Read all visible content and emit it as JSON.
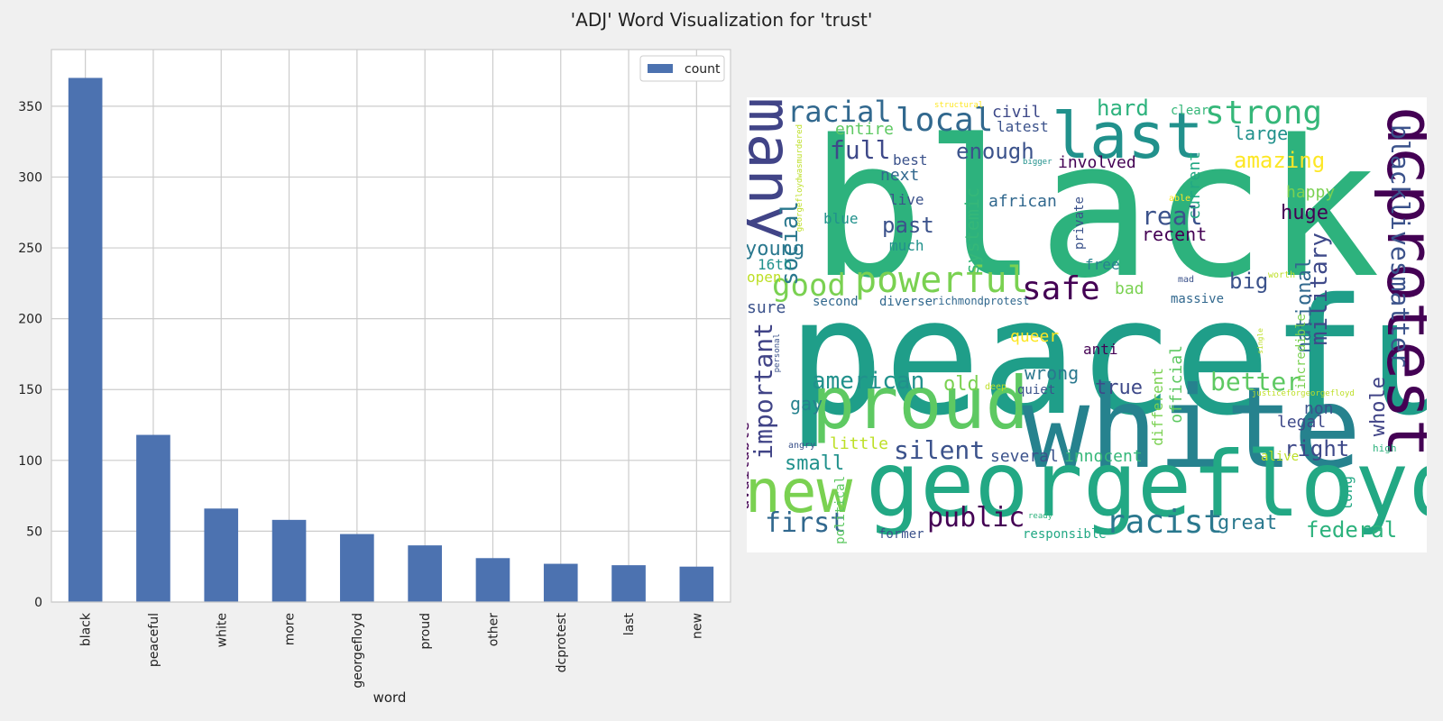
{
  "figure": {
    "title": "'ADJ' Word Visualization for 'trust'"
  },
  "chart_data": {
    "type": "bar",
    "categories": [
      "black",
      "peaceful",
      "white",
      "more",
      "georgefloyd",
      "proud",
      "other",
      "dcprotest",
      "last",
      "new"
    ],
    "series": [
      {
        "name": "count",
        "values": [
          370,
          118,
          66,
          58,
          48,
          40,
          31,
          27,
          26,
          25
        ]
      }
    ],
    "xlabel": "word",
    "ylabel": "",
    "ylim": [
      0,
      390
    ],
    "yticks": [
      0,
      50,
      100,
      150,
      200,
      250,
      300,
      350
    ],
    "grid": true,
    "legend_placement": "top-right",
    "bar_color": "#4c72b0"
  },
  "wordcloud": {
    "words": [
      {
        "text": "black",
        "c": "#2db27d"
      },
      {
        "text": "peaceful",
        "c": "#1f9e89"
      },
      {
        "text": "white",
        "c": "#26828e"
      },
      {
        "text": "georgefloyd",
        "c": "#22a884"
      },
      {
        "text": "proud",
        "c": "#5ec962"
      },
      {
        "text": "dcprotest",
        "c": "#440154"
      },
      {
        "text": "many",
        "c": "#414487"
      },
      {
        "text": "last",
        "c": "#21918c"
      },
      {
        "text": "new",
        "c": "#7ad151"
      },
      {
        "text": "powerful",
        "c": "#7ad151"
      },
      {
        "text": "blacklivesmatter",
        "c": "#3b528b"
      },
      {
        "text": "racist",
        "c": "#2a788e"
      },
      {
        "text": "strong",
        "c": "#35b779"
      },
      {
        "text": "local",
        "c": "#31688e"
      },
      {
        "text": "racial",
        "c": "#31688e"
      },
      {
        "text": "safe",
        "c": "#440154"
      },
      {
        "text": "public",
        "c": "#440154"
      },
      {
        "text": "good",
        "c": "#7ad151"
      },
      {
        "text": "military",
        "c": "#3e4989"
      },
      {
        "text": "important",
        "c": "#414487"
      },
      {
        "text": "social",
        "c": "#2a788e"
      },
      {
        "text": "american",
        "c": "#21918c"
      },
      {
        "text": "silent",
        "c": "#3b528b"
      },
      {
        "text": "first",
        "c": "#31688e"
      },
      {
        "text": "full",
        "c": "#3e4989"
      },
      {
        "text": "better",
        "c": "#5ec962"
      },
      {
        "text": "real",
        "c": "#3b528b"
      },
      {
        "text": "federal",
        "c": "#2db27d"
      },
      {
        "text": "national",
        "c": "#31688e"
      },
      {
        "text": "amazing",
        "c": "#fde725"
      },
      {
        "text": "whole",
        "c": "#414487"
      },
      {
        "text": "right",
        "c": "#3e4989"
      },
      {
        "text": "great",
        "c": "#2a788e"
      },
      {
        "text": "young",
        "c": "#2a788e"
      },
      {
        "text": "enough",
        "c": "#3b528b"
      },
      {
        "text": "hard",
        "c": "#2db27d"
      },
      {
        "text": "big",
        "c": "#3b528b"
      },
      {
        "text": "past",
        "c": "#3b528b"
      },
      {
        "text": "systemic",
        "c": "#35b779"
      },
      {
        "text": "huge",
        "c": "#440154"
      },
      {
        "text": "old",
        "c": "#7ad151"
      },
      {
        "text": "small",
        "c": "#21918c"
      },
      {
        "text": "wrong",
        "c": "#2a788e"
      },
      {
        "text": "true",
        "c": "#3e4989"
      },
      {
        "text": "current",
        "c": "#22a884"
      },
      {
        "text": "recent",
        "c": "#440154"
      },
      {
        "text": "involved",
        "c": "#440154"
      },
      {
        "text": "large",
        "c": "#21918c"
      },
      {
        "text": "happy",
        "c": "#7ad151"
      },
      {
        "text": "gay",
        "c": "#26828e"
      },
      {
        "text": "queer",
        "c": "#fde725"
      },
      {
        "text": "available",
        "c": "#440154"
      },
      {
        "text": "different",
        "c": "#7ad151"
      },
      {
        "text": "official",
        "c": "#5ec962"
      },
      {
        "text": "little",
        "c": "#bddf26"
      },
      {
        "text": "non",
        "c": "#3b528b"
      },
      {
        "text": "legal",
        "c": "#3e4989"
      },
      {
        "text": "several",
        "c": "#3b528b"
      },
      {
        "text": "innocent",
        "c": "#35b779"
      },
      {
        "text": "african",
        "c": "#31688e"
      },
      {
        "text": "civil",
        "c": "#3e4989"
      },
      {
        "text": "entire",
        "c": "#5ec962"
      },
      {
        "text": "latest",
        "c": "#3b528b"
      },
      {
        "text": "next",
        "c": "#31688e"
      },
      {
        "text": "live",
        "c": "#3b528b"
      },
      {
        "text": "best",
        "c": "#3b528b"
      },
      {
        "text": "much",
        "c": "#21918c"
      },
      {
        "text": "free",
        "c": "#26828e"
      },
      {
        "text": "bad",
        "c": "#7ad151"
      },
      {
        "text": "sure",
        "c": "#3b528b"
      },
      {
        "text": "16th",
        "c": "#21918c"
      },
      {
        "text": "open",
        "c": "#bddf26"
      },
      {
        "text": "blue",
        "c": "#21918c"
      },
      {
        "text": "massive",
        "c": "#31688e"
      },
      {
        "text": "anti",
        "c": "#440154"
      },
      {
        "text": "political",
        "c": "#5ec962"
      },
      {
        "text": "long",
        "c": "#22a884"
      },
      {
        "text": "incredible",
        "c": "#7ad151"
      },
      {
        "text": "private",
        "c": "#3b528b"
      },
      {
        "text": "quiet",
        "c": "#3b528b"
      },
      {
        "text": "second",
        "c": "#31688e"
      },
      {
        "text": "diverse",
        "c": "#31688e"
      },
      {
        "text": "richmondprotest",
        "c": "#31688e"
      },
      {
        "text": "clear",
        "c": "#35b779"
      },
      {
        "text": "former",
        "c": "#3b528b"
      },
      {
        "text": "responsible",
        "c": "#22a884"
      },
      {
        "text": "alive",
        "c": "#bddf26"
      },
      {
        "text": "high",
        "c": "#2db27d"
      },
      {
        "text": "angry",
        "c": "#3b528b"
      },
      {
        "text": "deep",
        "c": "#bddf26"
      },
      {
        "text": "ready",
        "c": "#2db27d"
      },
      {
        "text": "mad",
        "c": "#3b528b"
      },
      {
        "text": "worth",
        "c": "#bddf26"
      },
      {
        "text": "able",
        "c": "#fde725"
      },
      {
        "text": "bigger",
        "c": "#21918c"
      },
      {
        "text": "single",
        "c": "#bddf26"
      },
      {
        "text": "personal",
        "c": "#3b528b"
      },
      {
        "text": "justiceforgeorgefloyd",
        "c": "#bddf26"
      },
      {
        "text": "georgefloydwasmurdered",
        "c": "#bddf26"
      },
      {
        "text": "structural",
        "c": "#fde725"
      }
    ]
  }
}
